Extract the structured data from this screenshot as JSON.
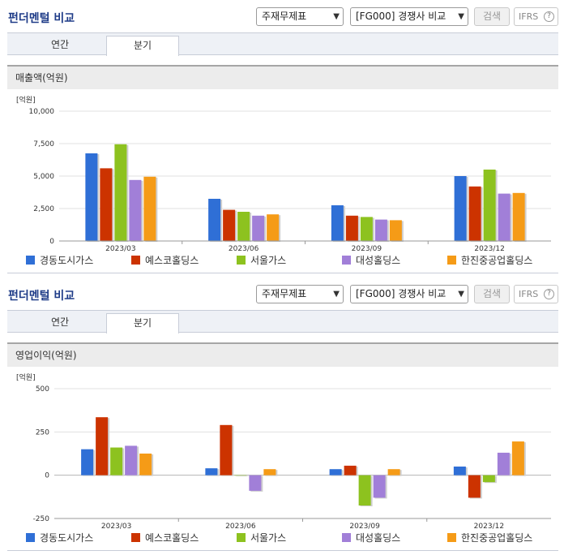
{
  "panels": [
    {
      "title": "펀더멘털 비교",
      "select_statement": "주재무제표",
      "select_group": "[FG000] 경쟁사 비교",
      "search_label": "검색",
      "ifrs_label": "IFRS",
      "help_glyph": "?",
      "tabs": [
        "연간",
        "분기"
      ],
      "active_tab": "분기",
      "section_title": "매출액(억원)"
    },
    {
      "title": "펀더멘털 비교",
      "select_statement": "주재무제표",
      "select_group": "[FG000] 경쟁사 비교",
      "search_label": "검색",
      "ifrs_label": "IFRS",
      "help_glyph": "?",
      "tabs": [
        "연간",
        "분기"
      ],
      "active_tab": "분기",
      "section_title": "영업이익(억원)"
    }
  ],
  "chevron_icon": "chevron-down-icon",
  "colors": {
    "series": [
      "#2f6fd6",
      "#cc3300",
      "#8dc21f",
      "#a17fd8",
      "#f59b17"
    ],
    "grid": "#e0e0e0",
    "title": "#1f3c88"
  },
  "chart_data": [
    {
      "type": "bar",
      "unit_label": "[억원]",
      "categories": [
        "2023/03",
        "2023/06",
        "2023/09",
        "2023/12"
      ],
      "ylim": [
        0,
        10000
      ],
      "yticks": [
        "0",
        "2,500",
        "5,000",
        "7,500",
        "10,000"
      ],
      "ytick_values": [
        0,
        2500,
        5000,
        7500,
        10000
      ],
      "series": [
        {
          "name": "경동도시가스",
          "values": [
            6750,
            3250,
            2750,
            5000
          ]
        },
        {
          "name": "예스코홀딩스",
          "values": [
            5600,
            2400,
            1950,
            4200
          ]
        },
        {
          "name": "서울가스",
          "values": [
            7450,
            2250,
            1850,
            5500
          ]
        },
        {
          "name": "대성홀딩스",
          "values": [
            4700,
            1950,
            1650,
            3650
          ]
        },
        {
          "name": "한진중공업홀딩스",
          "values": [
            4950,
            2050,
            1600,
            3700
          ]
        }
      ],
      "grid": true,
      "legend": "bottom"
    },
    {
      "type": "bar",
      "unit_label": "[억원]",
      "categories": [
        "2023/03",
        "2023/06",
        "2023/09",
        "2023/12"
      ],
      "ylim": [
        -250,
        500
      ],
      "yticks": [
        "-250",
        "0",
        "250",
        "500"
      ],
      "ytick_values": [
        -250,
        0,
        250,
        500
      ],
      "series": [
        {
          "name": "경동도시가스",
          "values": [
            150,
            40,
            35,
            50
          ]
        },
        {
          "name": "예스코홀딩스",
          "values": [
            335,
            290,
            55,
            -130
          ]
        },
        {
          "name": "서울가스",
          "values": [
            160,
            0,
            -175,
            -40
          ]
        },
        {
          "name": "대성홀딩스",
          "values": [
            170,
            -90,
            -130,
            130
          ]
        },
        {
          "name": "한진중공업홀딩스",
          "values": [
            125,
            35,
            35,
            195
          ]
        }
      ],
      "grid": true,
      "legend": "bottom"
    }
  ]
}
